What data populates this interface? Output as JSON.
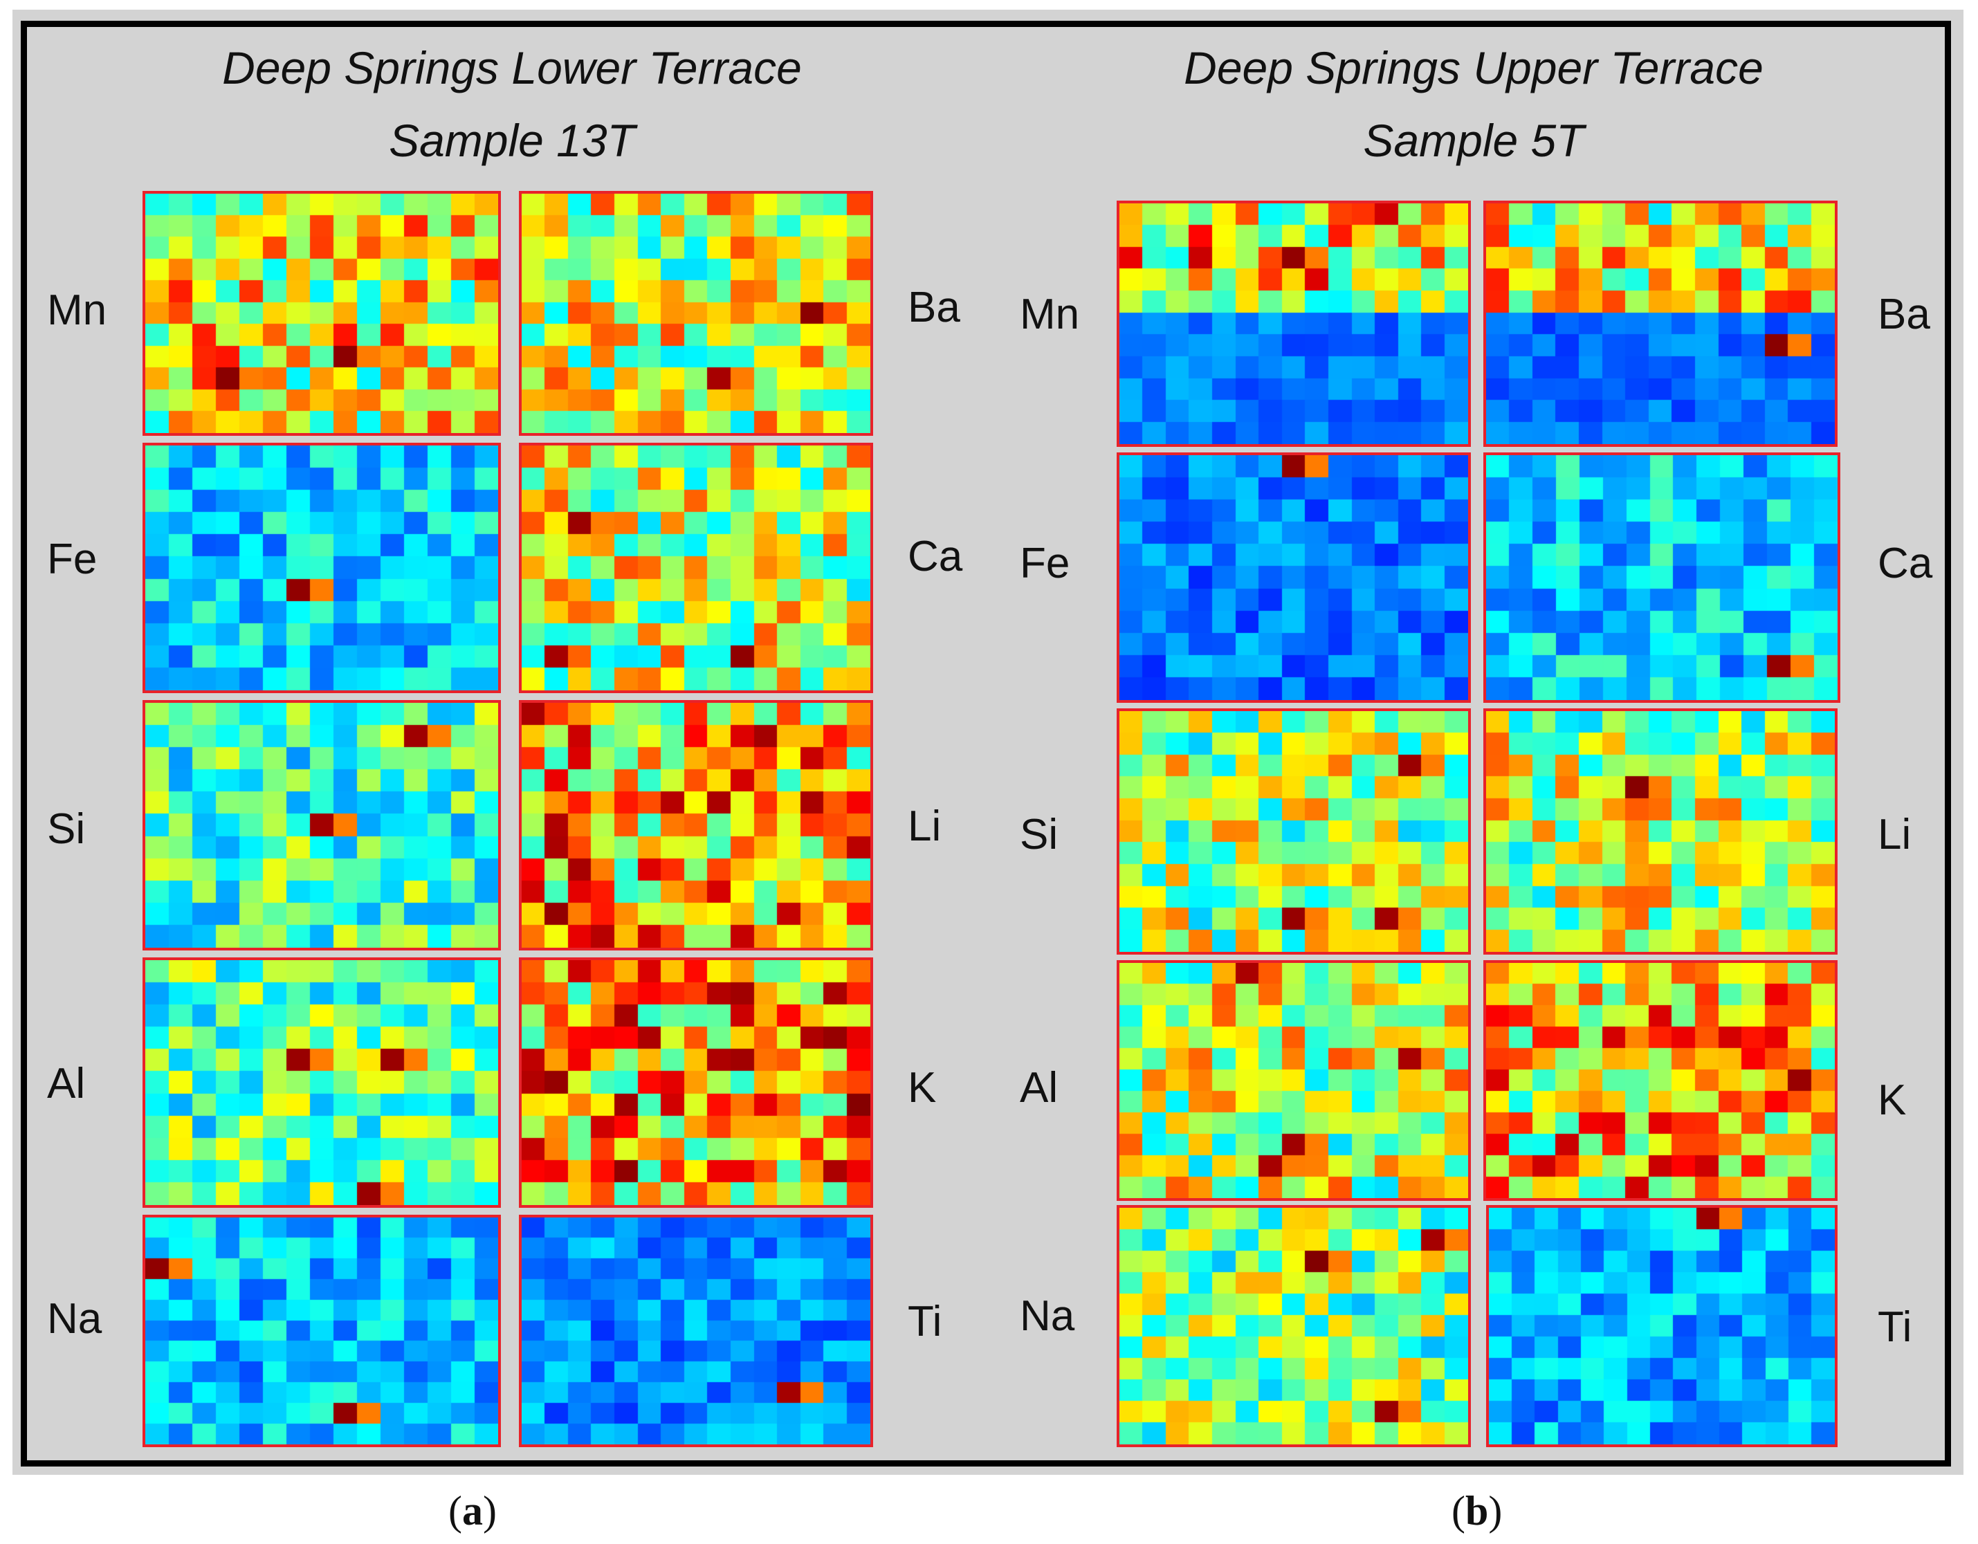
{
  "panels": {
    "a": {
      "title_line1": "Deep Springs Lower Terrace",
      "title_line2": "Sample 13T",
      "caption_letter": "a",
      "left_column": [
        "Mn",
        "Fe",
        "Si",
        "Al",
        "Na"
      ],
      "right_column": [
        "Ba",
        "Ca",
        "Li",
        "K",
        "Ti"
      ]
    },
    "b": {
      "title_line1": "Deep Springs Upper Terrace",
      "title_line2": "Sample 5T",
      "caption_letter": "b",
      "left_column": [
        "Mn",
        "Fe",
        "Si",
        "Al",
        "Na"
      ],
      "right_column": [
        "Ba",
        "Ca",
        "Li",
        "K",
        "Ti"
      ]
    }
  },
  "colors": {
    "background": "#d3d3d3",
    "frame": "#000000",
    "map_border": "#e8222a",
    "colormap": "jet"
  },
  "maps": {
    "a": {
      "Mn": {
        "level": 0.5,
        "hotspots": 2
      },
      "Ba": {
        "level": 0.46,
        "hotspots": 2
      },
      "Fe": {
        "level": 0.18,
        "hotspots": 1
      },
      "Ca": {
        "level": 0.45,
        "hotspots": 3
      },
      "Si": {
        "level": 0.3,
        "hotspots": 2
      },
      "Li": {
        "level": 0.58,
        "hotspots": 2
      },
      "Al": {
        "level": 0.33,
        "hotspots": 3
      },
      "K": {
        "level": 0.6,
        "hotspots": 2
      },
      "Na": {
        "level": 0.16,
        "hotspots": 2
      },
      "Ti": {
        "level": 0.1,
        "hotspots": 1
      }
    },
    "b": {
      "Mn": {
        "level": 0.34,
        "hotspots": 1
      },
      "Ba": {
        "level": 0.3,
        "hotspots": 1
      },
      "Fe": {
        "level": 0.08,
        "hotspots": 1
      },
      "Ca": {
        "level": 0.18,
        "hotspots": 1
      },
      "Si": {
        "level": 0.42,
        "hotspots": 3
      },
      "Li": {
        "level": 0.44,
        "hotspots": 2
      },
      "Al": {
        "level": 0.45,
        "hotspots": 4
      },
      "K": {
        "level": 0.55,
        "hotspots": 1
      },
      "Na": {
        "level": 0.38,
        "hotspots": 3
      },
      "Ti": {
        "level": 0.14,
        "hotspots": 1
      }
    }
  }
}
